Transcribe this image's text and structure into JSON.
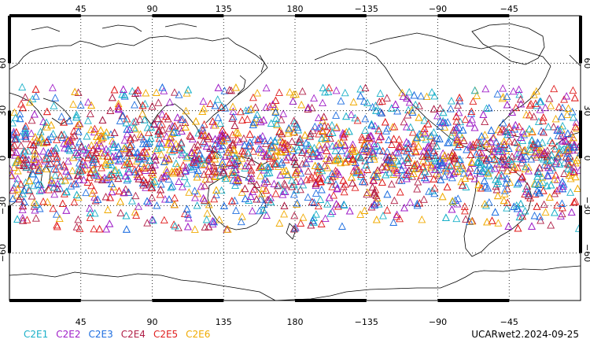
{
  "map": {
    "top_lon_labels": [
      "45",
      "90",
      "135",
      "180",
      "−135",
      "−90",
      "−45"
    ],
    "bottom_lon_labels": [
      "45",
      "90",
      "135",
      "180",
      "−135",
      "−90",
      "−45"
    ],
    "lat_labels": [
      "60",
      "30",
      "0",
      "−30",
      "−60"
    ],
    "lon_range": [
      0,
      360
    ],
    "lat_range": [
      -90,
      90
    ],
    "grid": true,
    "observation_lat_band": [
      -45,
      45
    ],
    "marker": "triangle"
  },
  "legend": {
    "items": [
      {
        "label": "C2E1",
        "color": "#1ab0c8"
      },
      {
        "label": "C2E2",
        "color": "#a020c8"
      },
      {
        "label": "C2E3",
        "color": "#1e6ee0"
      },
      {
        "label": "C2E4",
        "color": "#b01e46"
      },
      {
        "label": "C2E5",
        "color": "#e01e1e"
      },
      {
        "label": "C2E6",
        "color": "#f0aa00"
      }
    ]
  },
  "dataset_label": "UCARwet2.2024-09-25"
}
